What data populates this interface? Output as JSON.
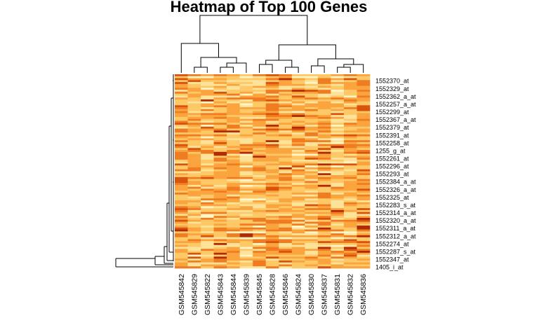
{
  "chart_data": {
    "type": "heatmap",
    "title": "Heatmap of Top 100 Genes",
    "color_scale": [
      "#fff5c6",
      "#fde39a",
      "#fec866",
      "#fba43e",
      "#f07c22",
      "#d8530c",
      "#b02b04"
    ],
    "value_range": [
      0,
      1
    ],
    "columns": [
      "GSM545842",
      "GSM545829",
      "GSM545822",
      "GSM545843",
      "GSM545844",
      "GSM545839",
      "GSM545845",
      "GSM545828",
      "GSM545846",
      "GSM545824",
      "GSM545830",
      "GSM545837",
      "GSM545831",
      "GSM545832",
      "GSM545836"
    ],
    "rows_total": 100,
    "row_labels_shown": [
      "1552370_at",
      "1552329_at",
      "1552362_a_at",
      "1552257_a_at",
      "1552299_at",
      "1552367_a_at",
      "1552379_at",
      "1552391_at",
      "1552258_at",
      "1255_g_at",
      "1552261_at",
      "1552296_at",
      "1552293_at",
      "1552384_a_at",
      "1552326_a_at",
      "1552325_at",
      "1552283_s_at",
      "1552314_a_at",
      "1552320_a_at",
      "1552311_a_at",
      "1552312_a_at",
      "1552274_at",
      "1552287_s_at",
      "1552347_at",
      "1405_i_at"
    ],
    "column_dendrogram": true,
    "row_dendrogram": true
  }
}
